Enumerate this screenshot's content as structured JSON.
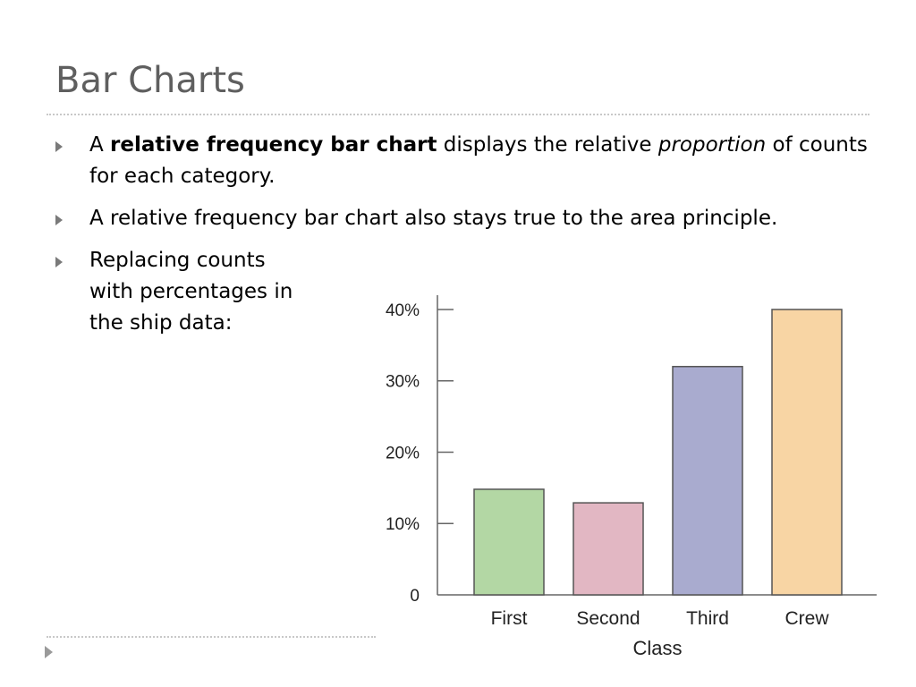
{
  "slide": {
    "title": "Bar Charts",
    "bullets": [
      {
        "segments": [
          {
            "text": "A ",
            "style": "normal"
          },
          {
            "text": "relative frequency bar chart",
            "style": "bold"
          },
          {
            "text": " displays the relative ",
            "style": "normal"
          },
          {
            "text": "proportion",
            "style": "italic"
          },
          {
            "text": " of counts for each category.",
            "style": "normal"
          }
        ]
      },
      {
        "segments": [
          {
            "text": "A relative frequency bar chart also stays true to the area principle.",
            "style": "normal"
          }
        ]
      },
      {
        "segments": [
          {
            "text": "Replacing counts with percentages in the ship data:",
            "style": "normal"
          }
        ]
      }
    ]
  },
  "chart_data": {
    "type": "bar",
    "categories": [
      "First",
      "Second",
      "Third",
      "Crew"
    ],
    "values": [
      14.8,
      12.9,
      32.0,
      40.0
    ],
    "colors": [
      "#b3d7a4",
      "#e2b7c3",
      "#a9abcf",
      "#f8d5a4"
    ],
    "xlabel": "Class",
    "ylabel": "",
    "ylim": [
      0,
      42
    ],
    "yticks": [
      0,
      10,
      20,
      30,
      40
    ],
    "ytick_labels": [
      "0",
      "10%",
      "20%",
      "30%",
      "40%"
    ],
    "grid": false
  }
}
